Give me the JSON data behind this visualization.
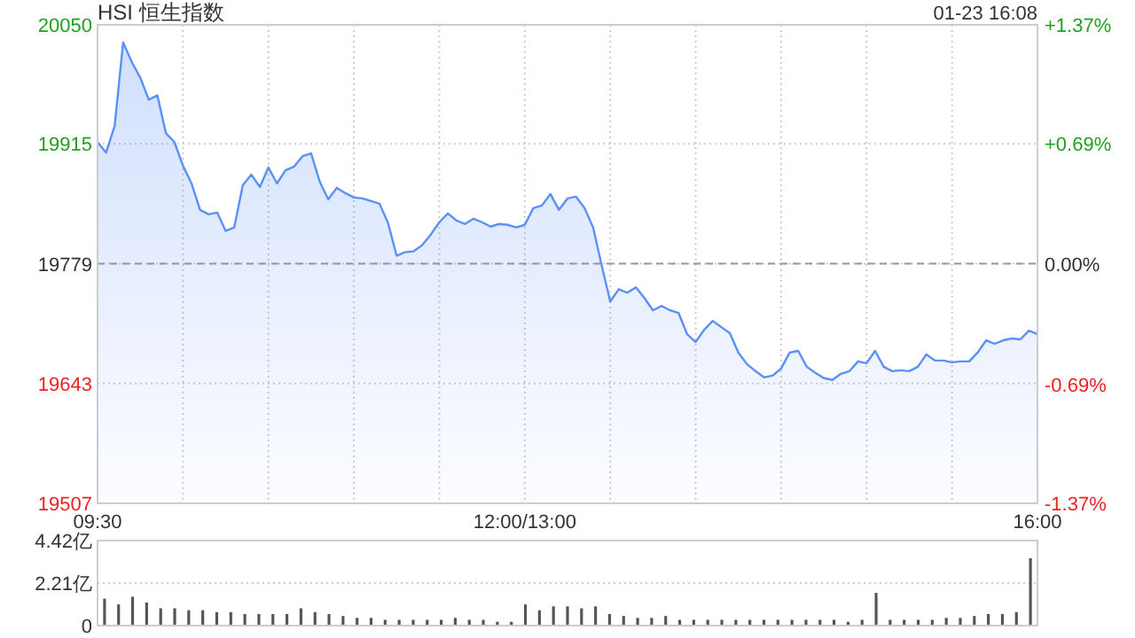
{
  "chart_data": [
    {
      "type": "area",
      "title": "HSI 恒生指数",
      "annotations": [
        "01-23 16:08"
      ],
      "categories": [
        "09:30",
        null,
        null,
        null,
        null,
        null,
        null,
        null,
        null,
        null,
        null,
        null,
        null,
        null,
        null,
        null,
        null,
        null,
        null,
        null,
        null,
        null,
        null,
        null,
        null,
        null,
        null,
        null,
        null,
        null,
        null,
        null,
        null,
        null,
        null,
        null,
        null,
        null,
        null,
        null,
        null,
        null,
        null,
        null,
        null,
        null,
        null,
        null,
        null,
        null,
        "12:00/13:00",
        null,
        null,
        null,
        null,
        null,
        null,
        null,
        null,
        null,
        null,
        null,
        null,
        null,
        null,
        null,
        null,
        null,
        null,
        null,
        null,
        null,
        null,
        null,
        null,
        null,
        null,
        null,
        null,
        null,
        null,
        null,
        null,
        null,
        null,
        null,
        null,
        null,
        null,
        null,
        null,
        null,
        null,
        null,
        null,
        null,
        null,
        null,
        null,
        null,
        null,
        null,
        null,
        null,
        null,
        null,
        null,
        null,
        null,
        null,
        "16:00"
      ],
      "ylim": [
        19507,
        20050
      ],
      "yticks": [
        19507,
        19643,
        19779,
        19915,
        20050
      ],
      "y2lim": [
        -1.37,
        1.37
      ],
      "y2ticks": [
        {
          "value": -1.37,
          "label": "-1.37%"
        },
        {
          "value": -0.69,
          "label": "-0.69%"
        },
        {
          "value": 0,
          "label": "0.00%"
        },
        {
          "value": 0.69,
          "label": "+0.69%"
        },
        {
          "value": 1.37,
          "label": "+1.37%"
        }
      ],
      "grid": true,
      "ref_lines": [
        {
          "axis": "y",
          "value": 19779,
          "color": "#999999",
          "line_style": "dashed"
        }
      ],
      "series": [
        {
          "color": "#5b8ff9",
          "values": [
            19917,
            19905,
            19935,
            20030,
            20008,
            19990,
            19965,
            19970,
            19927,
            19917,
            19890,
            19870,
            19840,
            19835,
            19837,
            19816,
            19820,
            19868,
            19880,
            19866,
            19888,
            19870,
            19885,
            19889,
            19901,
            19904,
            19872,
            19852,
            19865,
            19859,
            19854,
            19853,
            19850,
            19847,
            19825,
            19788,
            19792,
            19793,
            19800,
            19812,
            19826,
            19836,
            19828,
            19824,
            19830,
            19826,
            19821,
            19824,
            19823,
            19820,
            19823,
            19842,
            19845,
            19858,
            19840,
            19853,
            19855,
            19842,
            19820,
            19777,
            19736,
            19750,
            19746,
            19752,
            19740,
            19726,
            19731,
            19726,
            19723,
            19699,
            19690,
            19704,
            19714,
            19707,
            19700,
            19678,
            19665,
            19657,
            19650,
            19652,
            19660,
            19678,
            19680,
            19662,
            19655,
            19649,
            19647,
            19654,
            19657,
            19668,
            19666,
            19680,
            19662,
            19657,
            19658,
            19657,
            19662,
            19676,
            19669,
            19669,
            19667,
            19668,
            19668,
            19678,
            19692,
            19688,
            19692,
            19694,
            19693,
            19703,
            19699
          ]
        }
      ]
    },
    {
      "type": "bar",
      "ylim": [
        0,
        4.42
      ],
      "yticks": [
        0,
        {
          "value": 2.21,
          "label": "2.21亿"
        },
        {
          "value": 4.42,
          "label": "4.42亿"
        }
      ],
      "grid": "y",
      "tick_labels": "y",
      "categories": [
        null,
        null,
        null,
        null,
        null,
        null,
        null,
        null,
        null,
        null,
        null,
        null,
        null,
        null,
        null,
        null,
        null,
        null,
        null,
        null,
        null,
        null,
        null,
        null,
        null,
        null,
        null,
        null,
        null,
        null,
        null,
        null,
        null,
        null,
        null,
        null,
        null,
        null,
        null,
        null,
        null,
        null,
        null,
        null,
        null,
        null,
        null,
        null,
        null,
        null,
        null,
        null,
        null,
        null,
        null,
        null,
        null,
        null,
        null,
        null,
        null,
        null,
        null,
        null,
        null,
        null,
        null
      ],
      "series": [
        {
          "color": "#555555",
          "values": [
            1.4,
            1.1,
            1.5,
            1.2,
            0.9,
            0.9,
            0.8,
            0.8,
            0.7,
            0.7,
            0.6,
            0.6,
            0.6,
            0.6,
            0.9,
            0.7,
            0.6,
            0.5,
            0.4,
            0.4,
            0.3,
            0.3,
            0.3,
            0.3,
            0.3,
            0.4,
            0.3,
            0.3,
            0.2,
            0.2,
            1.1,
            0.8,
            1.0,
            1.0,
            0.9,
            1.0,
            0.6,
            0.5,
            0.4,
            0.4,
            0.5,
            0.3,
            0.3,
            0.3,
            0.3,
            0.3,
            0.3,
            0.3,
            0.3,
            0.3,
            0.3,
            0.3,
            0.3,
            0.2,
            0.3,
            1.7,
            0.3,
            0.3,
            0.3,
            0.3,
            0.4,
            0.4,
            0.5,
            0.6,
            0.6,
            0.7,
            3.5
          ]
        }
      ]
    }
  ]
}
